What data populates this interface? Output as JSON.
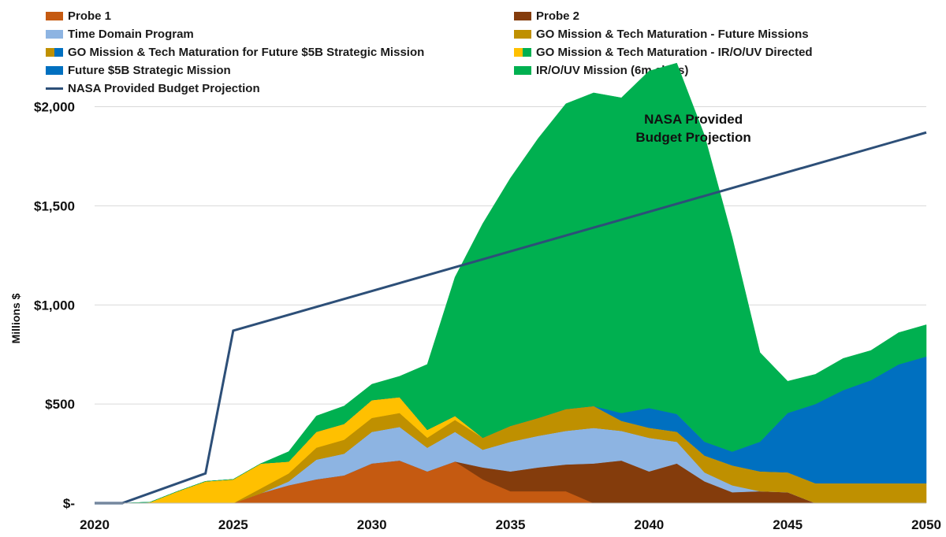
{
  "chart_data": {
    "type": "area",
    "stacked": true,
    "ylabel": "Millions $",
    "xlim": [
      2020,
      2050
    ],
    "ylim": [
      0,
      2300
    ],
    "x_ticks": [
      2020,
      2025,
      2030,
      2035,
      2040,
      2045,
      2050
    ],
    "x_tick_labels": [
      "2020",
      "2025",
      "2030",
      "2035",
      "2040",
      "2045",
      "2050"
    ],
    "y_ticks": [
      0,
      500,
      1000,
      1500,
      2000
    ],
    "y_tick_labels": [
      "$-",
      "$500",
      "$1,000",
      "$1,500",
      "$2,000"
    ],
    "grid": true,
    "x": [
      2020,
      2021,
      2022,
      2023,
      2024,
      2025,
      2026,
      2027,
      2028,
      2029,
      2030,
      2031,
      2032,
      2033,
      2034,
      2035,
      2036,
      2037,
      2038,
      2039,
      2040,
      2041,
      2042,
      2043,
      2044,
      2045,
      2046,
      2047,
      2048,
      2049,
      2050
    ],
    "series": [
      {
        "name": "Probe 1",
        "color": "#c55a11",
        "values": [
          0,
          0,
          0,
          0,
          0,
          0,
          50,
          90,
          120,
          140,
          200,
          215,
          160,
          210,
          120,
          60,
          60,
          60,
          0,
          0,
          0,
          0,
          0,
          0,
          0,
          0,
          0,
          0,
          0,
          0,
          0
        ]
      },
      {
        "name": "Probe 2",
        "color": "#843c0c",
        "values": [
          0,
          0,
          0,
          0,
          0,
          0,
          0,
          0,
          0,
          0,
          0,
          0,
          0,
          0,
          60,
          100,
          120,
          135,
          200,
          215,
          160,
          200,
          110,
          55,
          60,
          55,
          0,
          0,
          0,
          0,
          0
        ]
      },
      {
        "name": "Time Domain Program",
        "color": "#8db4e2",
        "values": [
          0,
          0,
          0,
          0,
          0,
          0,
          0,
          20,
          100,
          110,
          160,
          170,
          120,
          150,
          90,
          150,
          160,
          170,
          180,
          150,
          170,
          110,
          45,
          35,
          0,
          0,
          0,
          0,
          0,
          0,
          0
        ]
      },
      {
        "name": "GO Mission & Tech Maturation -  Future Missions",
        "color": "#bf9000",
        "values": [
          0,
          0,
          0,
          0,
          0,
          0,
          0,
          0,
          0,
          0,
          0,
          0,
          0,
          0,
          0,
          0,
          0,
          0,
          0,
          0,
          0,
          0,
          55,
          60,
          100,
          100,
          100,
          100,
          100,
          100,
          100
        ]
      },
      {
        "name": "GO Mission & Tech Maturation for Future $5B Strategic Mission",
        "color": "#bf9000",
        "values": [
          0,
          0,
          0,
          0,
          0,
          0,
          25,
          40,
          60,
          70,
          70,
          70,
          50,
          60,
          60,
          80,
          90,
          110,
          110,
          50,
          50,
          50,
          30,
          40,
          0,
          0,
          0,
          0,
          0,
          0,
          0
        ]
      },
      {
        "name": "GO Mission & Tech Maturation - IR/O/UV Directed",
        "color": "#ffc000",
        "values": [
          0,
          0,
          5,
          60,
          110,
          120,
          125,
          60,
          80,
          80,
          90,
          80,
          40,
          20,
          0,
          0,
          0,
          0,
          0,
          0,
          0,
          0,
          0,
          0,
          0,
          0,
          0,
          0,
          0,
          0,
          0
        ]
      },
      {
        "name": "Future $5B Strategic Mission",
        "color": "#0070c0",
        "values": [
          0,
          0,
          0,
          0,
          0,
          0,
          0,
          0,
          0,
          0,
          0,
          0,
          0,
          0,
          0,
          0,
          0,
          0,
          0,
          40,
          100,
          90,
          70,
          70,
          150,
          300,
          400,
          470,
          520,
          600,
          640
        ]
      },
      {
        "name": "IR/O/UV Mission (6m class)",
        "color": "#00b050",
        "values": [
          0,
          0,
          0,
          0,
          0,
          0,
          0,
          50,
          80,
          90,
          80,
          105,
          330,
          700,
          1080,
          1250,
          1410,
          1540,
          1580,
          1590,
          1700,
          1770,
          1545,
          1080,
          450,
          160,
          150,
          160,
          150,
          160,
          160
        ]
      }
    ],
    "budget_projection": {
      "name": "NASA Provided Budget Projection",
      "color": "#2d4f78",
      "x": [
        2020,
        2021,
        2024,
        2025,
        2050
      ],
      "values": [
        0,
        0,
        150,
        870,
        1870
      ]
    },
    "annotation": {
      "line1": "NASA Provided",
      "line2": "Budget Projection",
      "x": 2041.6,
      "y": 1915
    },
    "legend": [
      {
        "label": "Probe 1",
        "colors": [
          "#c55a11"
        ],
        "kind": "fill"
      },
      {
        "label": "Probe 2",
        "colors": [
          "#843c0c"
        ],
        "kind": "fill"
      },
      {
        "label": "Time Domain Program",
        "colors": [
          "#8db4e2"
        ],
        "kind": "fill"
      },
      {
        "label": "GO Mission & Tech Maturation -  Future Missions",
        "colors": [
          "#bf9000"
        ],
        "kind": "fill"
      },
      {
        "label": "GO Mission & Tech Maturation for Future $5B Strategic Mission",
        "colors": [
          "#bf9000",
          "#0070c0"
        ],
        "kind": "fill"
      },
      {
        "label": "GO Mission & Tech Maturation - IR/O/UV Directed",
        "colors": [
          "#ffc000",
          "#00b050"
        ],
        "kind": "fill"
      },
      {
        "label": "Future $5B Strategic Mission",
        "colors": [
          "#0070c0"
        ],
        "kind": "fill"
      },
      {
        "label": "IR/O/UV Mission (6m class)",
        "colors": [
          "#00b050"
        ],
        "kind": "fill"
      },
      {
        "label": "NASA Provided Budget Projection",
        "colors": [
          "#2d4f78"
        ],
        "kind": "line"
      }
    ]
  }
}
